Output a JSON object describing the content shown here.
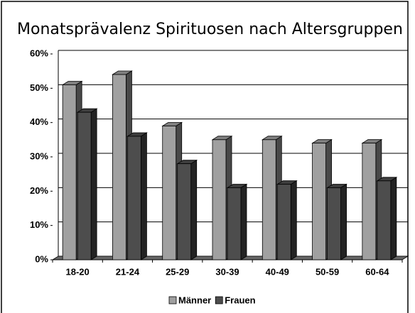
{
  "chart_data": {
    "type": "bar3d",
    "title": "Monatsprävalenz Spirituosen nach Altersgruppen",
    "categories": [
      "18-20",
      "21-24",
      "25-29",
      "30-39",
      "40-49",
      "50-59",
      "60-64"
    ],
    "series": [
      {
        "name": "Männer",
        "color": "#a0a0a0",
        "values": [
          51,
          54,
          39,
          35,
          35,
          34,
          34
        ]
      },
      {
        "name": "Frauen",
        "color": "#4d4d4d",
        "values": [
          43,
          36,
          28,
          21,
          22,
          21,
          23
        ]
      }
    ],
    "ylim": [
      0,
      60
    ],
    "yticks": [
      {
        "value": 0,
        "label": "0%"
      },
      {
        "value": 10,
        "label": "10%"
      },
      {
        "value": 20,
        "label": "20%"
      },
      {
        "value": 30,
        "label": "30%"
      },
      {
        "value": 40,
        "label": "40%"
      },
      {
        "value": 50,
        "label": "50%"
      },
      {
        "value": 60,
        "label": "60%"
      }
    ],
    "grid": true,
    "legend": "bottom"
  }
}
